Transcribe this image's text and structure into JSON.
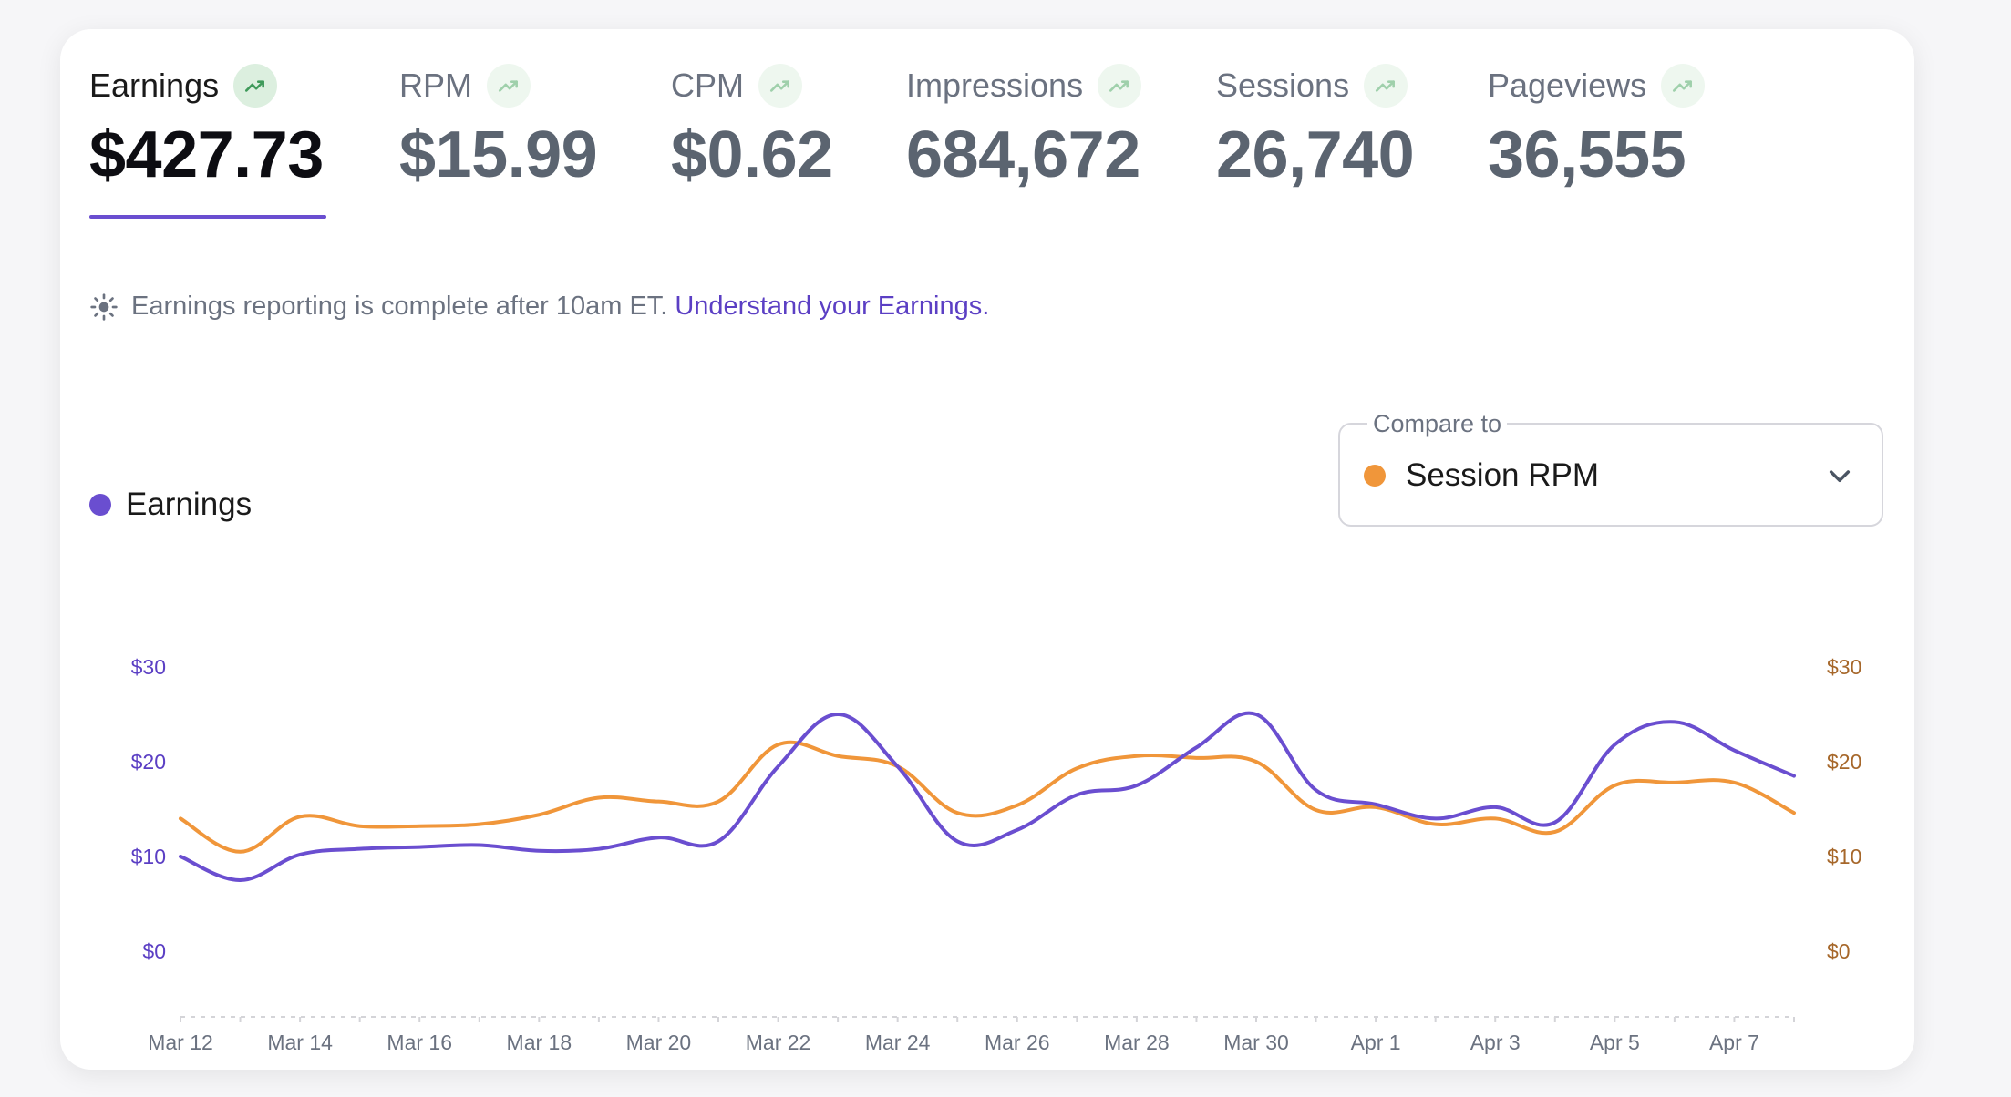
{
  "metrics": [
    {
      "label": "Earnings",
      "value": "$427.73",
      "active": true
    },
    {
      "label": "RPM",
      "value": "$15.99",
      "active": false
    },
    {
      "label": "CPM",
      "value": "$0.62",
      "active": false
    },
    {
      "label": "Impressions",
      "value": "684,672",
      "active": false
    },
    {
      "label": "Sessions",
      "value": "26,740",
      "active": false
    },
    {
      "label": "Pageviews",
      "value": "36,555",
      "active": false
    }
  ],
  "trend_icon": "trending-up-icon",
  "note": {
    "icon": "sun-icon",
    "text": "Earnings reporting is complete after 10am ET.",
    "link": "Understand your Earnings."
  },
  "legend": {
    "label": "Earnings",
    "color": "#6a4ed0"
  },
  "compare": {
    "label": "Compare to",
    "value": "Session RPM",
    "color": "#f0963a",
    "icon": "chevron-down-icon"
  },
  "colors": {
    "accent": "#6a4ed0",
    "compare": "#f0963a",
    "trend": "#3f9a5a"
  },
  "chart_data": {
    "type": "line",
    "x": [
      "Mar 12",
      "Mar 13",
      "Mar 14",
      "Mar 15",
      "Mar 16",
      "Mar 17",
      "Mar 18",
      "Mar 19",
      "Mar 20",
      "Mar 21",
      "Mar 22",
      "Mar 23",
      "Mar 24",
      "Mar 25",
      "Mar 26",
      "Mar 27",
      "Mar 28",
      "Mar 29",
      "Mar 30",
      "Mar 31",
      "Apr 1",
      "Apr 2",
      "Apr 3",
      "Apr 4",
      "Apr 5",
      "Apr 6",
      "Apr 7",
      "Apr 8"
    ],
    "x_tick_labels": [
      "Mar 12",
      "Mar 14",
      "Mar 16",
      "Mar 18",
      "Mar 20",
      "Mar 22",
      "Mar 24",
      "Mar 26",
      "Mar 28",
      "Mar 30",
      "Apr 1",
      "Apr 3",
      "Apr 5",
      "Apr 7"
    ],
    "series": [
      {
        "name": "Earnings",
        "color": "#6a4ed0",
        "axis": "left",
        "values": [
          10,
          7.5,
          10.2,
          10.8,
          11,
          11.2,
          10.6,
          10.8,
          12,
          11.6,
          19.5,
          25,
          19.5,
          11.6,
          12.8,
          16.5,
          17.5,
          21.5,
          25,
          17,
          15.5,
          14,
          15.2,
          13.6,
          21.8,
          24.2,
          21.2,
          18.5
        ]
      },
      {
        "name": "Session RPM",
        "color": "#f0963a",
        "axis": "right",
        "values": [
          14,
          10.5,
          14.2,
          13.2,
          13.2,
          13.4,
          14.4,
          16.2,
          15.8,
          15.8,
          21.8,
          20.6,
          19.5,
          14.6,
          15.4,
          19.3,
          20.6,
          20.4,
          20,
          14.9,
          15.2,
          13.4,
          14,
          12.6,
          17.5,
          17.8,
          17.8,
          14.6
        ]
      }
    ],
    "y_left": {
      "ticks": [
        "$0",
        "$10",
        "$20",
        "$30"
      ],
      "lim": [
        0,
        30
      ]
    },
    "y_right": {
      "ticks": [
        "$0",
        "$10",
        "$20",
        "$30"
      ],
      "lim": [
        0,
        30
      ]
    },
    "grid": false
  }
}
